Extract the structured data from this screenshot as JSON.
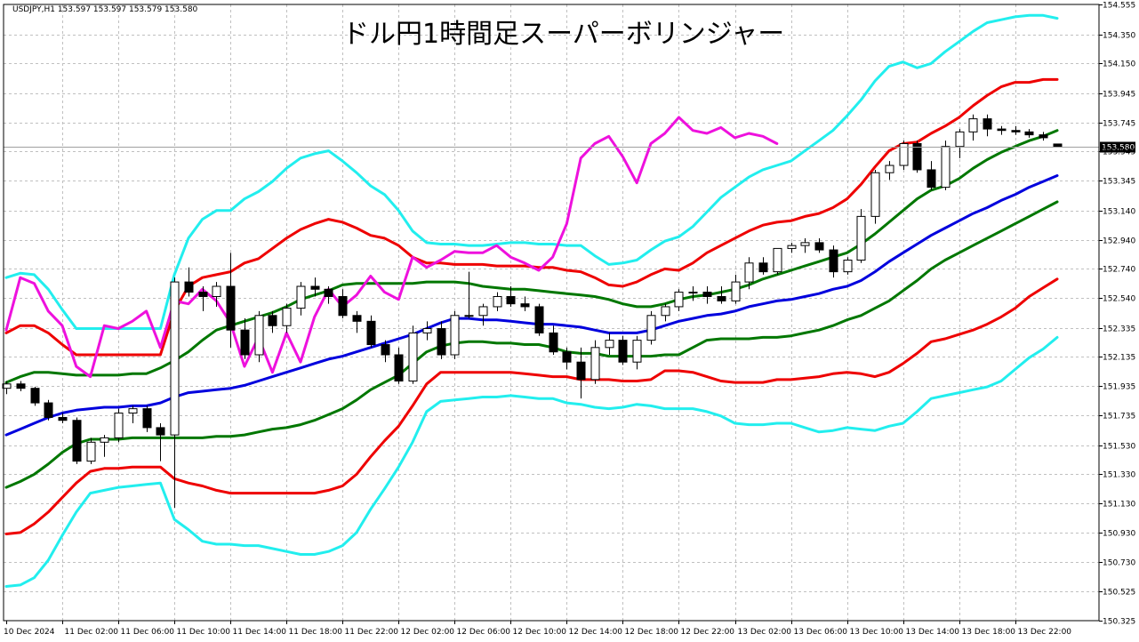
{
  "chart_data": {
    "type": "line",
    "title": "ドル円1時間足スーパーボリンジャー",
    "symbol_info": "USDJPY,H1  153.597 153.597 153.579 153.580",
    "current_price_label": "153.580",
    "current_price": 153.58,
    "ylim": [
      150.325,
      154.555
    ],
    "grid": true,
    "y_ticks": [
      "154.555",
      "154.350",
      "154.150",
      "153.945",
      "153.745",
      "153.545",
      "153.345",
      "153.140",
      "152.940",
      "152.740",
      "152.540",
      "152.335",
      "152.135",
      "151.935",
      "151.735",
      "151.530",
      "151.330",
      "151.130",
      "150.930",
      "150.730",
      "150.525",
      "150.325"
    ],
    "x_ticks": [
      "10 Dec 2024",
      "11 Dec 02:00",
      "11 Dec 06:00",
      "11 Dec 10:00",
      "11 Dec 14:00",
      "11 Dec 18:00",
      "11 Dec 22:00",
      "12 Dec 02:00",
      "12 Dec 06:00",
      "12 Dec 10:00",
      "12 Dec 14:00",
      "12 Dec 18:00",
      "12 Dec 22:00",
      "13 Dec 02:00",
      "13 Dec 06:00",
      "13 Dec 10:00",
      "13 Dec 14:00",
      "13 Dec 18:00",
      "13 Dec 22:00"
    ],
    "colors": {
      "mid": "#0000dd",
      "sigma1": "#007700",
      "sigma2": "#ee0000",
      "sigma3": "#22eeee",
      "lagging": "#ee11dd",
      "grid": "#c0c0c0",
      "price_line": "#a0a0a0",
      "label_bg": "#000000"
    },
    "candles": [
      [
        151.92,
        151.97,
        151.88,
        151.95
      ],
      [
        151.95,
        151.97,
        151.9,
        151.92
      ],
      [
        151.92,
        151.93,
        151.8,
        151.82
      ],
      [
        151.82,
        151.84,
        151.7,
        151.72
      ],
      [
        151.72,
        151.75,
        151.68,
        151.7
      ],
      [
        151.7,
        151.72,
        151.4,
        151.42
      ],
      [
        151.42,
        151.58,
        151.4,
        151.55
      ],
      [
        151.55,
        151.6,
        151.45,
        151.58
      ],
      [
        151.58,
        151.78,
        151.55,
        151.75
      ],
      [
        151.75,
        151.8,
        151.68,
        151.78
      ],
      [
        151.78,
        151.8,
        151.62,
        151.65
      ],
      [
        151.65,
        151.68,
        151.42,
        151.6
      ],
      [
        151.6,
        152.68,
        151.1,
        152.65
      ],
      [
        152.65,
        152.75,
        152.55,
        152.58
      ],
      [
        152.58,
        152.62,
        152.45,
        152.55
      ],
      [
        152.55,
        152.65,
        152.48,
        152.62
      ],
      [
        152.62,
        152.85,
        152.2,
        152.32
      ],
      [
        152.32,
        152.4,
        152.12,
        152.15
      ],
      [
        152.15,
        152.45,
        152.1,
        152.42
      ],
      [
        152.42,
        152.45,
        152.3,
        152.35
      ],
      [
        152.35,
        152.5,
        152.3,
        152.47
      ],
      [
        152.47,
        152.65,
        152.42,
        152.62
      ],
      [
        152.62,
        152.68,
        152.55,
        152.6
      ],
      [
        152.6,
        152.62,
        152.5,
        152.55
      ],
      [
        152.55,
        152.6,
        152.4,
        152.42
      ],
      [
        152.42,
        152.45,
        152.3,
        152.38
      ],
      [
        152.38,
        152.42,
        152.2,
        152.22
      ],
      [
        152.22,
        152.25,
        152.1,
        152.15
      ],
      [
        152.15,
        152.2,
        151.95,
        151.97
      ],
      [
        151.97,
        152.35,
        151.95,
        152.3
      ],
      [
        152.3,
        152.38,
        152.25,
        152.33
      ],
      [
        152.33,
        152.38,
        152.12,
        152.15
      ],
      [
        152.15,
        152.45,
        152.12,
        152.42
      ],
      [
        152.42,
        152.72,
        152.4,
        152.42
      ],
      [
        152.42,
        152.5,
        152.35,
        152.48
      ],
      [
        152.48,
        152.58,
        152.45,
        152.55
      ],
      [
        152.55,
        152.62,
        152.48,
        152.5
      ],
      [
        152.5,
        152.55,
        152.45,
        152.48
      ],
      [
        152.48,
        152.5,
        152.28,
        152.3
      ],
      [
        152.3,
        152.35,
        152.15,
        152.17
      ],
      [
        152.17,
        152.2,
        152.05,
        152.1
      ],
      [
        152.1,
        152.2,
        151.85,
        151.98
      ],
      [
        151.98,
        152.25,
        151.95,
        152.2
      ],
      [
        152.2,
        152.3,
        152.15,
        152.25
      ],
      [
        152.25,
        152.28,
        152.08,
        152.1
      ],
      [
        152.1,
        152.28,
        152.05,
        152.25
      ],
      [
        152.25,
        152.45,
        152.22,
        152.42
      ],
      [
        152.42,
        152.5,
        152.38,
        152.48
      ],
      [
        152.48,
        152.6,
        152.45,
        152.58
      ],
      [
        152.58,
        152.62,
        152.52,
        152.58
      ],
      [
        152.58,
        152.62,
        152.5,
        152.55
      ],
      [
        152.55,
        152.62,
        152.5,
        152.52
      ],
      [
        152.52,
        152.7,
        152.5,
        152.65
      ],
      [
        152.65,
        152.82,
        152.6,
        152.78
      ],
      [
        152.78,
        152.82,
        152.7,
        152.72
      ],
      [
        152.72,
        152.88,
        152.7,
        152.88
      ],
      [
        152.88,
        152.92,
        152.85,
        152.9
      ],
      [
        152.9,
        152.95,
        152.85,
        152.92
      ],
      [
        152.92,
        152.95,
        152.85,
        152.87
      ],
      [
        152.87,
        152.9,
        152.68,
        152.72
      ],
      [
        152.72,
        152.82,
        152.7,
        152.8
      ],
      [
        152.8,
        153.15,
        152.78,
        153.1
      ],
      [
        153.1,
        153.42,
        153.05,
        153.4
      ],
      [
        153.4,
        153.48,
        153.35,
        153.45
      ],
      [
        153.45,
        153.62,
        153.42,
        153.6
      ],
      [
        153.6,
        153.62,
        153.4,
        153.42
      ],
      [
        153.42,
        153.48,
        153.28,
        153.3
      ],
      [
        153.3,
        153.62,
        153.28,
        153.58
      ],
      [
        153.58,
        153.7,
        153.5,
        153.68
      ],
      [
        153.68,
        153.8,
        153.62,
        153.77
      ],
      [
        153.77,
        153.8,
        153.65,
        153.7
      ],
      [
        153.7,
        153.72,
        153.66,
        153.69
      ],
      [
        153.69,
        153.72,
        153.66,
        153.68
      ],
      [
        153.68,
        153.7,
        153.64,
        153.66
      ],
      [
        153.66,
        153.68,
        153.62,
        153.64
      ],
      [
        153.597,
        153.597,
        153.579,
        153.58
      ]
    ],
    "series": [
      {
        "key": "mid",
        "values": [
          151.6,
          151.64,
          151.68,
          151.72,
          151.75,
          151.77,
          151.78,
          151.79,
          151.79,
          151.8,
          151.8,
          151.82,
          151.86,
          151.89,
          151.9,
          151.91,
          151.92,
          151.94,
          151.97,
          152.0,
          152.03,
          152.06,
          152.09,
          152.12,
          152.14,
          152.17,
          152.2,
          152.23,
          152.26,
          152.29,
          152.33,
          152.37,
          152.4,
          152.4,
          152.39,
          152.39,
          152.38,
          152.37,
          152.36,
          152.36,
          152.35,
          152.34,
          152.32,
          152.3,
          152.3,
          152.3,
          152.32,
          152.35,
          152.38,
          152.4,
          152.42,
          152.43,
          152.45,
          152.48,
          152.5,
          152.52,
          152.53,
          152.55,
          152.57,
          152.6,
          152.62,
          152.66,
          152.72,
          152.79,
          152.85,
          152.91,
          152.97,
          153.02,
          153.07,
          153.12,
          153.16,
          153.21,
          153.25,
          153.3,
          153.34,
          153.38
        ]
      },
      {
        "key": "p1",
        "values": [
          151.96,
          152.0,
          152.03,
          152.03,
          152.02,
          152.01,
          152.01,
          152.01,
          152.01,
          152.02,
          152.02,
          152.06,
          152.11,
          152.17,
          152.25,
          152.32,
          152.35,
          152.38,
          152.41,
          152.44,
          152.48,
          152.53,
          152.56,
          152.59,
          152.63,
          152.64,
          152.64,
          152.64,
          152.64,
          152.64,
          152.65,
          152.65,
          152.65,
          152.64,
          152.62,
          152.61,
          152.6,
          152.6,
          152.59,
          152.58,
          152.57,
          152.56,
          152.55,
          152.53,
          152.5,
          152.48,
          152.48,
          152.5,
          152.53,
          152.55,
          152.56,
          152.58,
          152.6,
          152.63,
          152.67,
          152.7,
          152.73,
          152.76,
          152.79,
          152.82,
          152.85,
          152.91,
          152.98,
          153.06,
          153.14,
          153.22,
          153.28,
          153.31,
          153.36,
          153.43,
          153.49,
          153.54,
          153.58,
          153.62,
          153.65,
          153.69
        ]
      },
      {
        "key": "m1",
        "values": [
          151.24,
          151.28,
          151.33,
          151.4,
          151.48,
          151.54,
          151.57,
          151.57,
          151.57,
          151.58,
          151.58,
          151.58,
          151.58,
          151.58,
          151.58,
          151.59,
          151.59,
          151.6,
          151.62,
          151.64,
          151.65,
          151.67,
          151.7,
          151.74,
          151.78,
          151.84,
          151.91,
          151.96,
          152.01,
          152.09,
          152.17,
          152.21,
          152.23,
          152.24,
          152.24,
          152.23,
          152.23,
          152.22,
          152.22,
          152.2,
          152.17,
          152.16,
          152.16,
          152.14,
          152.14,
          152.14,
          152.14,
          152.15,
          152.15,
          152.2,
          152.25,
          152.26,
          152.26,
          152.26,
          152.27,
          152.27,
          152.28,
          152.3,
          152.32,
          152.35,
          152.39,
          152.42,
          152.47,
          152.52,
          152.59,
          152.66,
          152.74,
          152.8,
          152.85,
          152.9,
          152.95,
          153.0,
          153.05,
          153.1,
          153.15,
          153.2
        ]
      },
      {
        "key": "p2",
        "values": [
          152.3,
          152.35,
          152.35,
          152.3,
          152.22,
          152.15,
          152.15,
          152.15,
          152.15,
          152.15,
          152.15,
          152.15,
          152.45,
          152.62,
          152.68,
          152.7,
          152.72,
          152.78,
          152.81,
          152.88,
          152.95,
          153.01,
          153.05,
          153.08,
          153.06,
          153.02,
          152.97,
          152.95,
          152.9,
          152.82,
          152.78,
          152.78,
          152.77,
          152.77,
          152.77,
          152.76,
          152.76,
          152.76,
          152.75,
          152.75,
          152.73,
          152.72,
          152.68,
          152.63,
          152.62,
          152.65,
          152.7,
          152.74,
          152.73,
          152.78,
          152.85,
          152.9,
          152.95,
          153.0,
          153.04,
          153.06,
          153.07,
          153.1,
          153.12,
          153.16,
          153.22,
          153.32,
          153.44,
          153.55,
          153.6,
          153.61,
          153.67,
          153.72,
          153.78,
          153.86,
          153.93,
          153.99,
          154.02,
          154.02,
          154.04,
          154.04
        ]
      },
      {
        "key": "m2",
        "values": [
          150.92,
          150.93,
          150.99,
          151.07,
          151.17,
          151.27,
          151.35,
          151.37,
          151.37,
          151.38,
          151.38,
          151.38,
          151.3,
          151.27,
          151.25,
          151.22,
          151.2,
          151.2,
          151.2,
          151.2,
          151.2,
          151.2,
          151.2,
          151.22,
          151.25,
          151.33,
          151.45,
          151.56,
          151.66,
          151.8,
          151.95,
          152.03,
          152.03,
          152.03,
          152.03,
          152.03,
          152.03,
          152.02,
          152.01,
          152.0,
          152.0,
          151.98,
          151.98,
          151.98,
          151.97,
          151.97,
          151.98,
          152.04,
          152.04,
          152.03,
          152.0,
          151.97,
          151.96,
          151.96,
          151.96,
          151.98,
          151.98,
          151.99,
          152.0,
          152.02,
          152.03,
          152.02,
          152.0,
          152.03,
          152.09,
          152.16,
          152.24,
          152.26,
          152.29,
          152.32,
          152.36,
          152.41,
          152.47,
          152.55,
          152.61,
          152.67
        ]
      },
      {
        "key": "p3",
        "values": [
          152.68,
          152.71,
          152.7,
          152.6,
          152.46,
          152.33,
          152.33,
          152.33,
          152.33,
          152.33,
          152.33,
          152.33,
          152.7,
          152.95,
          153.08,
          153.14,
          153.14,
          153.22,
          153.27,
          153.34,
          153.43,
          153.5,
          153.53,
          153.55,
          153.48,
          153.4,
          153.31,
          153.25,
          153.14,
          153.0,
          152.92,
          152.91,
          152.91,
          152.9,
          152.9,
          152.91,
          152.92,
          152.92,
          152.91,
          152.91,
          152.9,
          152.9,
          152.83,
          152.77,
          152.78,
          152.8,
          152.87,
          152.93,
          152.96,
          153.03,
          153.13,
          153.23,
          153.3,
          153.37,
          153.42,
          153.45,
          153.48,
          153.55,
          153.62,
          153.69,
          153.79,
          153.9,
          154.03,
          154.13,
          154.16,
          154.12,
          154.15,
          154.23,
          154.3,
          154.37,
          154.43,
          154.45,
          154.47,
          154.48,
          154.48,
          154.46
        ]
      },
      {
        "key": "m3",
        "values": [
          150.56,
          150.57,
          150.62,
          150.74,
          150.91,
          151.07,
          151.2,
          151.22,
          151.24,
          151.25,
          151.26,
          151.27,
          151.02,
          150.95,
          150.87,
          150.85,
          150.85,
          150.84,
          150.84,
          150.82,
          150.8,
          150.78,
          150.78,
          150.8,
          150.84,
          150.93,
          151.09,
          151.23,
          151.38,
          151.55,
          151.76,
          151.83,
          151.84,
          151.85,
          151.86,
          151.86,
          151.87,
          151.86,
          151.85,
          151.85,
          151.82,
          151.81,
          151.79,
          151.78,
          151.79,
          151.81,
          151.8,
          151.78,
          151.78,
          151.78,
          151.76,
          151.73,
          151.68,
          151.67,
          151.67,
          151.68,
          151.68,
          151.65,
          151.62,
          151.63,
          151.65,
          151.64,
          151.63,
          151.66,
          151.68,
          151.76,
          151.85,
          151.87,
          151.89,
          151.91,
          151.93,
          151.97,
          152.05,
          152.13,
          152.19,
          152.27
        ]
      },
      {
        "key": "lag",
        "values": [
          152.32,
          152.68,
          152.64,
          152.45,
          152.35,
          152.07,
          152.0,
          152.35,
          152.33,
          152.38,
          152.45,
          152.2,
          152.52,
          152.5,
          152.6,
          152.52,
          152.37,
          152.07,
          152.27,
          152.03,
          152.3,
          152.1,
          152.41,
          152.6,
          152.48,
          152.56,
          152.69,
          152.58,
          152.53,
          152.82,
          152.75,
          152.8,
          152.86,
          152.85,
          152.85,
          152.9,
          152.82,
          152.78,
          152.73,
          152.82,
          153.05,
          153.5,
          153.6,
          153.65,
          153.51,
          153.33,
          153.6,
          153.67,
          153.78,
          153.69,
          153.67,
          153.71,
          153.64,
          153.67,
          153.65,
          153.6
        ]
      }
    ]
  }
}
